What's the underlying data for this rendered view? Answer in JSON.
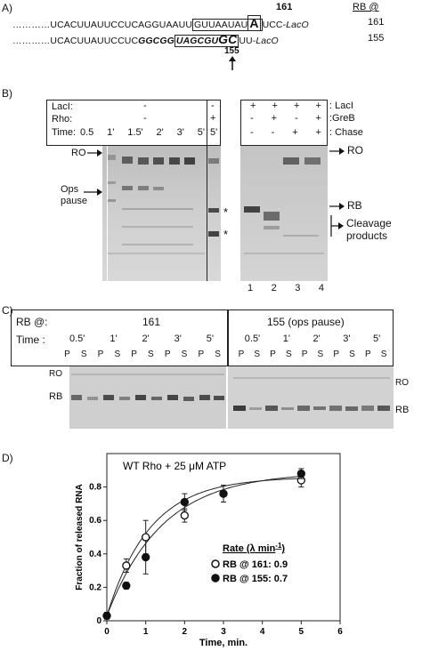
{
  "panelA": {
    "label": "A)",
    "rb_header": "RB @",
    "pos161": "161",
    "pos155": "155",
    "row1": {
      "dots": "…………",
      "prefix": "UCACUUAUUCCUCAGGUAAUU",
      "boxed": "GUUAAUAU",
      "boxed_big": "A",
      "suffix": "UCC-",
      "suffix_it": "LacO",
      "rb": "161"
    },
    "row2": {
      "dots": "…………",
      "prefix": "UCACUUAUUCCUC",
      "bold": "GGCGG",
      "boxed": "UAGCGU",
      "boxed_big": "GC",
      "suffix": "UU-",
      "suffix_it": "LacO",
      "rb": "155"
    }
  },
  "panelB": {
    "label": "B)",
    "row_labels": [
      "LacI:",
      "Rho:",
      "Time:"
    ],
    "laci_minus": "-",
    "rho_minus": "-",
    "rho_plus": "+",
    "times": [
      "0.5",
      "1'",
      "1.5'",
      "2'",
      "3'",
      "5'"
    ],
    "time_last": "5'",
    "right_rows": {
      "laci": [
        "+",
        "+",
        "+",
        "+"
      ],
      "greb": [
        "-",
        "+",
        "-",
        "+"
      ],
      "chase": [
        "-",
        "-",
        "+",
        "+"
      ],
      "laci_label": ": LacI",
      "greb_label": ":GreB",
      "chase_label": ": Chase"
    },
    "ro": "RO",
    "ops_pause": "Ops\npause",
    "star": "*",
    "ro_right": "RO",
    "rb_right": "RB",
    "cleavage": "Cleavage\nproducts",
    "lanes": [
      "1",
      "2",
      "3",
      "4"
    ]
  },
  "panelC": {
    "label": "C)",
    "rb_at": "RB @:",
    "time": "Time :",
    "left_title": "161",
    "right_title": "155 (ops pause)",
    "times": [
      "0.5'",
      "1'",
      "2'",
      "3'",
      "5'"
    ],
    "p": "P",
    "s": "S",
    "ro_left": "RO",
    "rb_left": "RB",
    "ro_right": "RO",
    "rb_right": "RB"
  },
  "panelD": {
    "label": "D)",
    "legend_title": "Rate (λ min",
    "legend_sup": "-1",
    "legend_close": ")",
    "entries": [
      {
        "label": "RB @ 161:  0.9",
        "marker": "open"
      },
      {
        "label": "RB @ 155:  0.7",
        "marker": "filled"
      }
    ]
  },
  "chart_data": {
    "type": "scatter",
    "title": "WT Rho + 25 μM ATP",
    "xlabel": "Time, min.",
    "ylabel": "Fraction of released RNA",
    "xlim": [
      0,
      6
    ],
    "ylim": [
      0,
      1.0
    ],
    "xticks": [
      "0",
      "1",
      "2",
      "3",
      "4",
      "5",
      "6"
    ],
    "yticks": [
      "0",
      "0.2",
      "0.4",
      "0.6",
      "0.8"
    ],
    "series": [
      {
        "name": "RB @ 161",
        "marker": "open",
        "x": [
          0,
          0.5,
          1,
          2,
          3,
          5
        ],
        "y": [
          0.03,
          0.33,
          0.5,
          0.63,
          0.76,
          0.84
        ],
        "err": [
          0.02,
          0.04,
          0.1,
          0.04,
          0.05,
          0.04
        ],
        "rate": 0.9
      },
      {
        "name": "RB @ 155",
        "marker": "filled",
        "x": [
          0,
          0.5,
          1,
          2,
          3,
          5
        ],
        "y": [
          0.03,
          0.21,
          0.38,
          0.71,
          0.76,
          0.88
        ],
        "err": [
          0.02,
          0.02,
          0.1,
          0.05,
          0.05,
          0.03
        ],
        "rate": 0.7
      }
    ]
  }
}
